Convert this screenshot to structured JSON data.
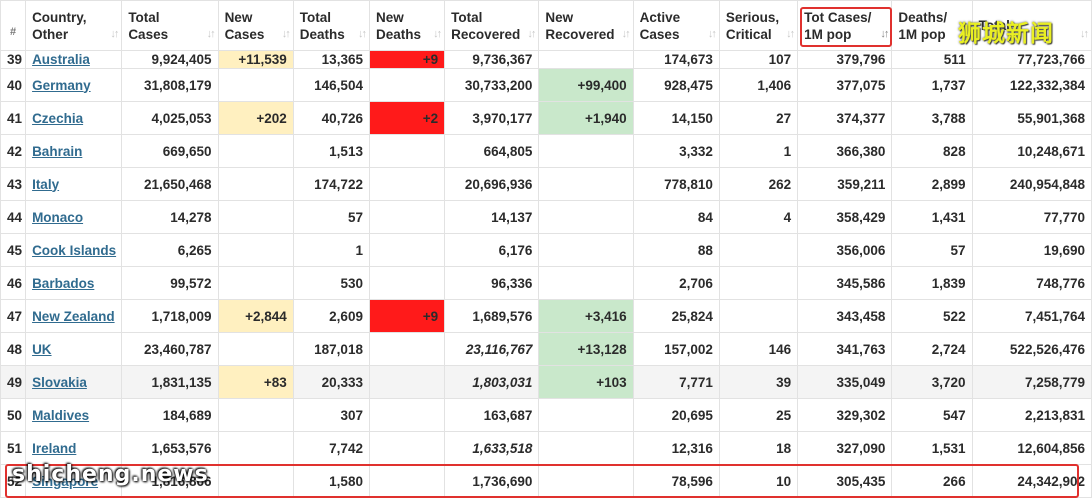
{
  "headers": [
    {
      "label": "#"
    },
    {
      "label": "Country,\nOther"
    },
    {
      "label": "Total\nCases"
    },
    {
      "label": "New\nCases"
    },
    {
      "label": "Total\nDeaths"
    },
    {
      "label": "New\nDeaths"
    },
    {
      "label": "Total\nRecovered"
    },
    {
      "label": "New\nRecovered"
    },
    {
      "label": "Active\nCases"
    },
    {
      "label": "Serious,\nCritical"
    },
    {
      "label": "Tot Cases/\n1M pop"
    },
    {
      "label": "Deaths/\n1M pop"
    },
    {
      "label": "Total"
    }
  ],
  "rows": [
    {
      "rank": "39",
      "country": "Australia",
      "total_cases": "9,924,405",
      "new_cases": "+11,539",
      "total_deaths": "13,365",
      "new_deaths": "+9",
      "total_recovered": "9,736,367",
      "new_recovered": "",
      "active_cases": "174,673",
      "serious_critical": "107",
      "tot_cases_1m": "379,796",
      "deaths_1m": "511",
      "total_tests": "77,723,766"
    },
    {
      "rank": "40",
      "country": "Germany",
      "total_cases": "31,808,179",
      "new_cases": "",
      "total_deaths": "146,504",
      "new_deaths": "",
      "total_recovered": "30,733,200",
      "new_recovered": "+99,400",
      "active_cases": "928,475",
      "serious_critical": "1,406",
      "tot_cases_1m": "377,075",
      "deaths_1m": "1,737",
      "total_tests": "122,332,384"
    },
    {
      "rank": "41",
      "country": "Czechia",
      "total_cases": "4,025,053",
      "new_cases": "+202",
      "total_deaths": "40,726",
      "new_deaths": "+2",
      "total_recovered": "3,970,177",
      "new_recovered": "+1,940",
      "active_cases": "14,150",
      "serious_critical": "27",
      "tot_cases_1m": "374,377",
      "deaths_1m": "3,788",
      "total_tests": "55,901,368"
    },
    {
      "rank": "42",
      "country": "Bahrain",
      "total_cases": "669,650",
      "new_cases": "",
      "total_deaths": "1,513",
      "new_deaths": "",
      "total_recovered": "664,805",
      "new_recovered": "",
      "active_cases": "3,332",
      "serious_critical": "1",
      "tot_cases_1m": "366,380",
      "deaths_1m": "828",
      "total_tests": "10,248,671"
    },
    {
      "rank": "43",
      "country": "Italy",
      "total_cases": "21,650,468",
      "new_cases": "",
      "total_deaths": "174,722",
      "new_deaths": "",
      "total_recovered": "20,696,936",
      "new_recovered": "",
      "active_cases": "778,810",
      "serious_critical": "262",
      "tot_cases_1m": "359,211",
      "deaths_1m": "2,899",
      "total_tests": "240,954,848"
    },
    {
      "rank": "44",
      "country": "Monaco",
      "total_cases": "14,278",
      "new_cases": "",
      "total_deaths": "57",
      "new_deaths": "",
      "total_recovered": "14,137",
      "new_recovered": "",
      "active_cases": "84",
      "serious_critical": "4",
      "tot_cases_1m": "358,429",
      "deaths_1m": "1,431",
      "total_tests": "77,770"
    },
    {
      "rank": "45",
      "country": "Cook Islands",
      "total_cases": "6,265",
      "new_cases": "",
      "total_deaths": "1",
      "new_deaths": "",
      "total_recovered": "6,176",
      "new_recovered": "",
      "active_cases": "88",
      "serious_critical": "",
      "tot_cases_1m": "356,006",
      "deaths_1m": "57",
      "total_tests": "19,690"
    },
    {
      "rank": "46",
      "country": "Barbados",
      "total_cases": "99,572",
      "new_cases": "",
      "total_deaths": "530",
      "new_deaths": "",
      "total_recovered": "96,336",
      "new_recovered": "",
      "active_cases": "2,706",
      "serious_critical": "",
      "tot_cases_1m": "345,586",
      "deaths_1m": "1,839",
      "total_tests": "748,776"
    },
    {
      "rank": "47",
      "country": "New Zealand",
      "total_cases": "1,718,009",
      "new_cases": "+2,844",
      "total_deaths": "2,609",
      "new_deaths": "+9",
      "total_recovered": "1,689,576",
      "new_recovered": "+3,416",
      "active_cases": "25,824",
      "serious_critical": "",
      "tot_cases_1m": "343,458",
      "deaths_1m": "522",
      "total_tests": "7,451,764"
    },
    {
      "rank": "48",
      "country": "UK",
      "total_cases": "23,460,787",
      "new_cases": "",
      "total_deaths": "187,018",
      "new_deaths": "",
      "total_recovered": "23,116,767",
      "new_recovered": "+13,128",
      "active_cases": "157,002",
      "serious_critical": "146",
      "tot_cases_1m": "341,763",
      "deaths_1m": "2,724",
      "total_tests": "522,526,476"
    },
    {
      "rank": "49",
      "country": "Slovakia",
      "total_cases": "1,831,135",
      "new_cases": "+83",
      "total_deaths": "20,333",
      "new_deaths": "",
      "total_recovered": "1,803,031",
      "new_recovered": "+103",
      "active_cases": "7,771",
      "serious_critical": "39",
      "tot_cases_1m": "335,049",
      "deaths_1m": "3,720",
      "total_tests": "7,258,779"
    },
    {
      "rank": "50",
      "country": "Maldives",
      "total_cases": "184,689",
      "new_cases": "",
      "total_deaths": "307",
      "new_deaths": "",
      "total_recovered": "163,687",
      "new_recovered": "",
      "active_cases": "20,695",
      "serious_critical": "25",
      "tot_cases_1m": "329,302",
      "deaths_1m": "547",
      "total_tests": "2,213,831"
    },
    {
      "rank": "51",
      "country": "Ireland",
      "total_cases": "1,653,576",
      "new_cases": "",
      "total_deaths": "7,742",
      "new_deaths": "",
      "total_recovered": "1,633,518",
      "new_recovered": "",
      "active_cases": "12,316",
      "serious_critical": "18",
      "tot_cases_1m": "327,090",
      "deaths_1m": "1,531",
      "total_tests": "12,604,856"
    },
    {
      "rank": "52",
      "country": "Singapore",
      "total_cases": "1,816,866",
      "new_cases": "",
      "total_deaths": "1,580",
      "new_deaths": "",
      "total_recovered": "1,736,690",
      "new_recovered": "",
      "active_cases": "78,596",
      "serious_critical": "10",
      "tot_cases_1m": "305,435",
      "deaths_1m": "266",
      "total_tests": "24,342,902"
    }
  ],
  "watermarks": {
    "top_right": "狮城新闻",
    "bottom_left": "shicheng.news"
  },
  "colors": {
    "new_cases_bg": "#fff0c0",
    "new_deaths_bg": "#ff1a1a",
    "new_recovered_bg": "#c9e8cb",
    "country_link": "#306b8f",
    "highlight_box": "#e0312e"
  }
}
